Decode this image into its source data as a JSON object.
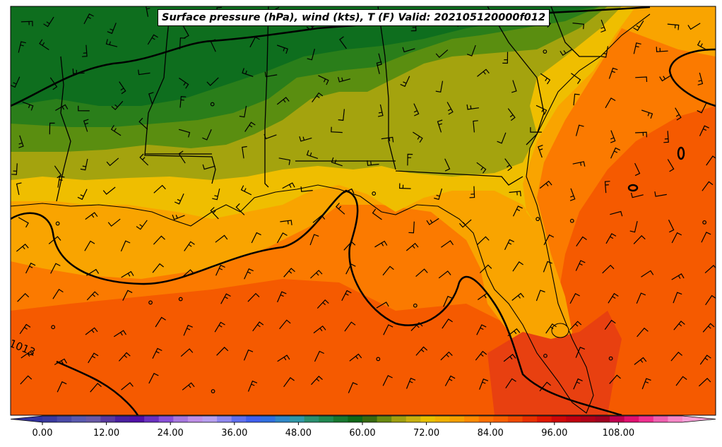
{
  "title": "Surface pressure (hPa), wind (kts), T (F) Valid: 202105120000f012",
  "colorbar": {
    "tick_labels": [
      "0.00",
      "12.00",
      "24.00",
      "36.00",
      "48.00",
      "60.00",
      "72.00",
      "84.00",
      "96.00",
      "108.00"
    ],
    "range": [
      0,
      120
    ],
    "step": 3,
    "colors": [
      "#3a3aa0",
      "#4a4aa8",
      "#5a5ab0",
      "#6a5aa8",
      "#5a3aa0",
      "#4a20a0",
      "#5010a8",
      "#6a30c0",
      "#8a50d8",
      "#a878e0",
      "#c090e8",
      "#b8a0f0",
      "#9088f0",
      "#6070f0",
      "#4060f0",
      "#3070e0",
      "#3088c8",
      "#3098a8",
      "#2a9070",
      "#208850",
      "#187830",
      "#106818",
      "#386a10",
      "#6a8a10",
      "#a0a010",
      "#c8b010",
      "#e8c000",
      "#f0b000",
      "#f5a000",
      "#ff8a00",
      "#ff7000",
      "#f86000",
      "#f04a00",
      "#e83000",
      "#e01800",
      "#d00808",
      "#c00010",
      "#b00018",
      "#a00020",
      "#c00050",
      "#e01070",
      "#f03090",
      "#f060b0",
      "#f888c8"
    ]
  },
  "contour_label": "1013",
  "map_colors": {
    "dark_green": "#0e6e1e",
    "green": "#2a7e1a",
    "olive_green": "#5a8e10",
    "olive": "#a4a30e",
    "yellow": "#efbe00",
    "orange_light": "#f9a400",
    "orange": "#fb7a00",
    "orange_dark": "#f55a00",
    "red_orange": "#e84010"
  }
}
